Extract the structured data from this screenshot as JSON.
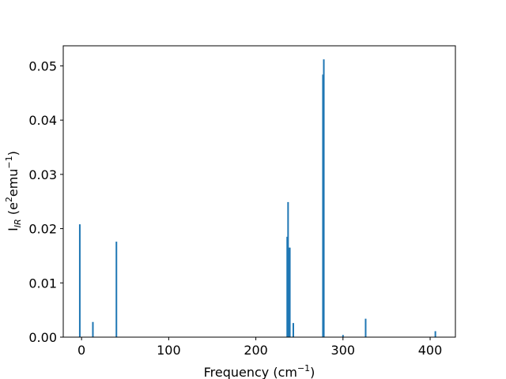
{
  "chart_data": {
    "type": "bar",
    "title": "",
    "xlabel": {
      "main": "Frequency (cm",
      "sup": "−1",
      "tail": ")"
    },
    "ylabel": {
      "prefix": "I",
      "sub": "IR",
      "mid": " (e",
      "sup1": "2",
      "mid2": "emu",
      "sup2": "−1",
      "tail": ")"
    },
    "xlim": [
      -21,
      429
    ],
    "ylim": [
      0,
      0.0537
    ],
    "x_ticks": [
      {
        "value": 0,
        "label": "0"
      },
      {
        "value": 100,
        "label": "100"
      },
      {
        "value": 200,
        "label": "200"
      },
      {
        "value": 300,
        "label": "300"
      },
      {
        "value": 400,
        "label": "400"
      }
    ],
    "y_ticks": [
      {
        "value": 0.0,
        "label": "0.00"
      },
      {
        "value": 0.01,
        "label": "0.01"
      },
      {
        "value": 0.02,
        "label": "0.02"
      },
      {
        "value": 0.03,
        "label": "0.03"
      },
      {
        "value": 0.04,
        "label": "0.04"
      },
      {
        "value": 0.05,
        "label": "0.05"
      }
    ],
    "grid": false,
    "bar_color": "#1f77b4",
    "bars": [
      {
        "x": -2,
        "y": 0.0208
      },
      {
        "x": 13,
        "y": 0.0028
      },
      {
        "x": 40,
        "y": 0.0176
      },
      {
        "x": 236,
        "y": 0.0185
      },
      {
        "x": 237,
        "y": 0.0249
      },
      {
        "x": 238,
        "y": 0.0165
      },
      {
        "x": 239,
        "y": 0.0165
      },
      {
        "x": 243,
        "y": 0.0026
      },
      {
        "x": 277,
        "y": 0.0484
      },
      {
        "x": 278,
        "y": 0.0512
      },
      {
        "x": 300,
        "y": 0.0004
      },
      {
        "x": 326,
        "y": 0.0034
      },
      {
        "x": 406,
        "y": 0.0011
      }
    ]
  }
}
